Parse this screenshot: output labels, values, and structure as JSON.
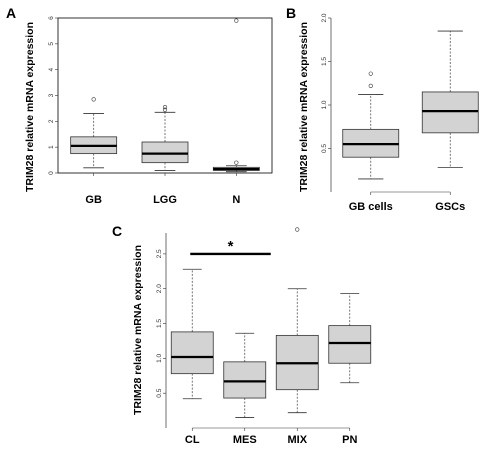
{
  "chart_data": [
    {
      "type": "box",
      "panel_label": "A",
      "ylabel": "TRIM28 relative mRNA expression",
      "categories": [
        "GB",
        "LGG",
        "N"
      ],
      "ylim": [
        0,
        6
      ],
      "yticks": [
        "0",
        "1",
        "2",
        "3",
        "4",
        "5",
        "6"
      ],
      "boxes": [
        {
          "category": "GB",
          "whisker_low": 0.2,
          "q1": 0.75,
          "median": 1.05,
          "q3": 1.4,
          "whisker_high": 2.3,
          "outliers": [
            2.85
          ]
        },
        {
          "category": "LGG",
          "whisker_low": 0.1,
          "q1": 0.4,
          "median": 0.75,
          "q3": 1.2,
          "whisker_high": 2.35,
          "outliers": [
            2.45,
            2.55
          ]
        },
        {
          "category": "N",
          "whisker_low": 0.05,
          "q1": 0.1,
          "median": 0.15,
          "q3": 0.22,
          "whisker_high": 0.28,
          "outliers": [
            0.4,
            5.9
          ]
        }
      ]
    },
    {
      "type": "box",
      "panel_label": "B",
      "ylabel": "TRIM28 relative mRNA expression",
      "categories": [
        "GB cells",
        "GSCs"
      ],
      "ylim": [
        0,
        2.0
      ],
      "yticks": [
        "0.5",
        "1.0",
        "1.5",
        "2.0"
      ],
      "boxes": [
        {
          "category": "GB cells",
          "whisker_low": 0.15,
          "q1": 0.4,
          "median": 0.55,
          "q3": 0.72,
          "whisker_high": 1.12,
          "outliers": [
            1.22,
            1.36
          ]
        },
        {
          "category": "GSCs",
          "whisker_low": 0.28,
          "q1": 0.68,
          "median": 0.93,
          "q3": 1.15,
          "whisker_high": 1.85,
          "outliers": []
        }
      ]
    },
    {
      "type": "box",
      "panel_label": "C",
      "ylabel": "TRIM28 relative mRNA expression",
      "categories": [
        "CL",
        "MES",
        "MIX",
        "PN"
      ],
      "ylim": [
        0,
        2.8
      ],
      "yticks": [
        "0.5",
        "1.0",
        "1.5",
        "2.0",
        "2.5"
      ],
      "boxes": [
        {
          "category": "CL",
          "whisker_low": 0.42,
          "q1": 0.78,
          "median": 1.02,
          "q3": 1.38,
          "whisker_high": 2.28,
          "outliers": []
        },
        {
          "category": "MES",
          "whisker_low": 0.15,
          "q1": 0.43,
          "median": 0.67,
          "q3": 0.95,
          "whisker_high": 1.36,
          "outliers": []
        },
        {
          "category": "MIX",
          "whisker_low": 0.22,
          "q1": 0.55,
          "median": 0.93,
          "q3": 1.33,
          "whisker_high": 2.0,
          "outliers": [
            2.85
          ]
        },
        {
          "category": "PN",
          "whisker_low": 0.65,
          "q1": 0.93,
          "median": 1.22,
          "q3": 1.47,
          "whisker_high": 1.93,
          "outliers": []
        }
      ],
      "annotation": {
        "text": "*",
        "between": [
          "CL",
          "MES"
        ],
        "y": 2.5
      }
    }
  ],
  "colors": {
    "box_fill": "#d3d3d3",
    "line": "#000000",
    "whisker": "#555555"
  }
}
